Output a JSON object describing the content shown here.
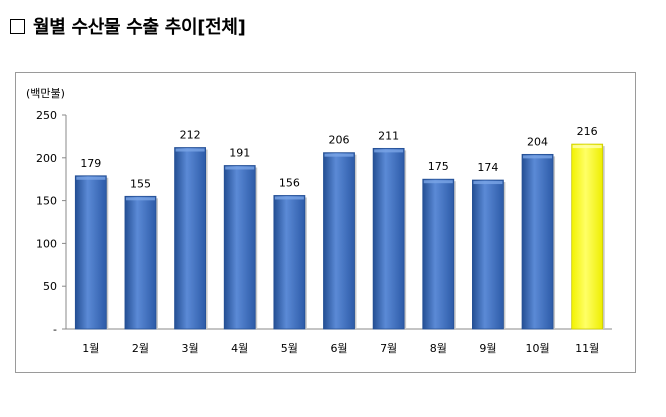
{
  "heading": {
    "text": "월별 수산물 수출 추이[전체]"
  },
  "chart_data": {
    "type": "bar",
    "title": "",
    "unit_label": "(백만불)",
    "categories": [
      "1월",
      "2월",
      "3월",
      "4월",
      "5월",
      "6월",
      "7월",
      "8월",
      "9월",
      "10월",
      "11월"
    ],
    "values": [
      179,
      155,
      212,
      191,
      156,
      206,
      211,
      175,
      174,
      204,
      216
    ],
    "ylim": [
      0,
      250
    ],
    "yticks": [
      "-",
      "50",
      "100",
      "150",
      "200",
      "250"
    ],
    "grid": false,
    "legend": "none",
    "colors": {
      "bar": "#3d6fbf",
      "bar_dark": "#244f94",
      "bar_light": "#7aa5e6",
      "highlight": "#ffff33",
      "highlight_edge": "#c9c900"
    },
    "highlight_index": 10
  }
}
